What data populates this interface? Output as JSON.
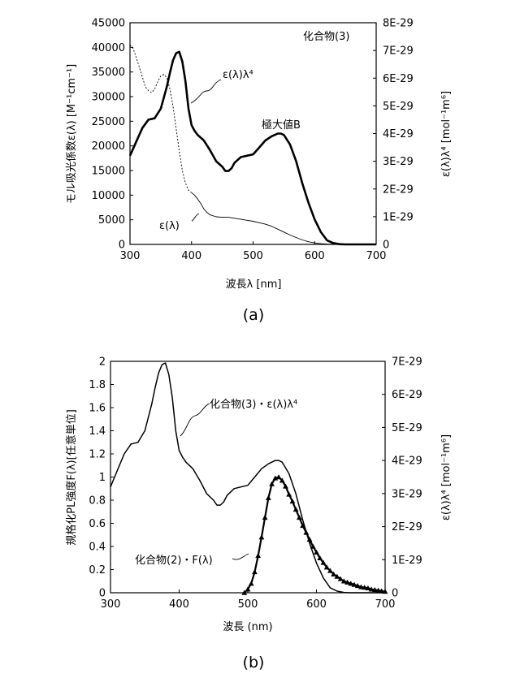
{
  "chart_data": [
    {
      "type": "line",
      "panel_label": "(a)",
      "compound_label": "化合物(3)",
      "xlabel": "波長λ [nm]",
      "ylabel_left": "モル吸光係数ε(λ) [M⁻¹cm⁻¹]",
      "ylabel_right": "ε(λ)λ⁴ [mol⁻¹m⁶]",
      "xlim": [
        300,
        700
      ],
      "ylim_left": [
        0,
        45000
      ],
      "ylim_right": [
        0,
        8e-29
      ],
      "xticks": [
        "300",
        "400",
        "500",
        "600",
        "700"
      ],
      "yticks_left": [
        "0",
        "5000",
        "10000",
        "15000",
        "20000",
        "25000",
        "30000",
        "35000",
        "40000",
        "45000"
      ],
      "yticks_right": [
        "0",
        "1E-29",
        "2E-29",
        "3E-29",
        "4E-29",
        "5E-29",
        "6E-29",
        "7E-29",
        "8E-29"
      ],
      "annotations": [
        "極大値B"
      ],
      "series": [
        {
          "name": "ε(λ)",
          "axis": "left",
          "style": "thin",
          "x": [
            300,
            305,
            310,
            315,
            320,
            325,
            330,
            335,
            340,
            345,
            350,
            355,
            360,
            365,
            370,
            375,
            380,
            385,
            390,
            395,
            400,
            405,
            410,
            415,
            420,
            425,
            430,
            440,
            450,
            460,
            470,
            480,
            490,
            500,
            510,
            520,
            530,
            540,
            550,
            560,
            570,
            580,
            590,
            600,
            610,
            620,
            640,
            660,
            680,
            700
          ],
          "values": [
            40500,
            39800,
            38000,
            36000,
            34000,
            32000,
            31200,
            30800,
            31500,
            33000,
            34200,
            34500,
            33800,
            31500,
            28000,
            23500,
            19000,
            15000,
            12500,
            11000,
            10500,
            10000,
            9200,
            8300,
            7200,
            6500,
            6000,
            5600,
            5500,
            5500,
            5300,
            5100,
            4900,
            4700,
            4400,
            4100,
            3700,
            3100,
            2500,
            1900,
            1400,
            900,
            550,
            300,
            150,
            60,
            10,
            0,
            0,
            0
          ]
        },
        {
          "name": "ε(λ)λ⁴",
          "axis": "right",
          "style": "thick",
          "x": [
            300,
            310,
            320,
            330,
            340,
            350,
            360,
            365,
            370,
            375,
            380,
            385,
            390,
            395,
            400,
            405,
            410,
            420,
            430,
            440,
            450,
            455,
            460,
            465,
            470,
            480,
            490,
            500,
            510,
            520,
            530,
            540,
            545,
            550,
            560,
            570,
            580,
            590,
            600,
            610,
            620,
            630,
            640,
            650,
            660,
            680,
            700
          ],
          "values": [
            3.2e-29,
            3.7e-29,
            4.2e-29,
            4.5e-29,
            4.55e-29,
            4.9e-29,
            5.7e-29,
            6.2e-29,
            6.65e-29,
            6.9e-29,
            6.95e-29,
            6.6e-29,
            5.9e-29,
            4.9e-29,
            4.3e-29,
            4.1e-29,
            3.95e-29,
            3.75e-29,
            3.4e-29,
            3e-29,
            2.8e-29,
            2.65e-29,
            2.65e-29,
            2.75e-29,
            2.95e-29,
            3.15e-29,
            3.2e-29,
            3.25e-29,
            3.5e-29,
            3.75e-29,
            3.9e-29,
            4e-29,
            4e-29,
            3.95e-29,
            3.6e-29,
            3e-29,
            2.2e-29,
            1.5e-29,
            9e-30,
            4.5e-30,
            1.5e-30,
            5e-31,
            1e-31,
            0,
            0,
            0,
            0
          ]
        }
      ]
    },
    {
      "type": "line",
      "panel_label": "(b)",
      "xlabel": "波長 (nm)",
      "ylabel_left": "規格化PL強度F(λ)[任意単位]",
      "ylabel_right": "ε(λ)λ⁴ [mol⁻¹m⁶]",
      "xlim": [
        300,
        700
      ],
      "ylim_left": [
        0,
        2
      ],
      "ylim_right": [
        0,
        7e-29
      ],
      "xticks": [
        "300",
        "400",
        "500",
        "600",
        "700"
      ],
      "yticks_left": [
        "0",
        "0.2",
        "0.4",
        "0.6",
        "0.8",
        "1",
        "1.2",
        "1.4",
        "1.6",
        "1.8",
        "2"
      ],
      "yticks_right": [
        "0",
        "1E-29",
        "2E-29",
        "3E-29",
        "4E-29",
        "5E-29",
        "6E-29",
        "7E-29"
      ],
      "series": [
        {
          "name": "化合物(3)・ε(λ)λ⁴",
          "axis": "right",
          "style": "line",
          "x": [
            300,
            310,
            320,
            330,
            340,
            350,
            360,
            365,
            370,
            375,
            380,
            385,
            390,
            395,
            400,
            405,
            410,
            420,
            430,
            440,
            450,
            455,
            460,
            465,
            470,
            480,
            490,
            500,
            510,
            520,
            530,
            540,
            545,
            550,
            560,
            570,
            580,
            590,
            600,
            610,
            620,
            630,
            640,
            650,
            660,
            680,
            700
          ],
          "values": [
            3.2e-29,
            3.7e-29,
            4.2e-29,
            4.5e-29,
            4.55e-29,
            4.9e-29,
            5.7e-29,
            6.2e-29,
            6.65e-29,
            6.9e-29,
            6.95e-29,
            6.6e-29,
            5.9e-29,
            4.9e-29,
            4.3e-29,
            4.1e-29,
            3.95e-29,
            3.75e-29,
            3.4e-29,
            3e-29,
            2.8e-29,
            2.65e-29,
            2.65e-29,
            2.75e-29,
            2.95e-29,
            3.15e-29,
            3.2e-29,
            3.25e-29,
            3.5e-29,
            3.75e-29,
            3.9e-29,
            4e-29,
            4e-29,
            3.95e-29,
            3.6e-29,
            3e-29,
            2.2e-29,
            1.5e-29,
            9e-30,
            4.5e-30,
            1.5e-30,
            5e-31,
            1e-31,
            0,
            0,
            0,
            0
          ]
        },
        {
          "name": "化合物(2)・F(λ)",
          "axis": "left",
          "style": "triangle-markers",
          "x": [
            495,
            500,
            505,
            510,
            515,
            520,
            525,
            530,
            535,
            540,
            545,
            550,
            555,
            560,
            565,
            570,
            575,
            580,
            585,
            590,
            595,
            600,
            605,
            610,
            615,
            620,
            625,
            630,
            635,
            640,
            645,
            650,
            655,
            660,
            665,
            670,
            675,
            680,
            685,
            690,
            695,
            700
          ],
          "values": [
            0.0,
            0.03,
            0.08,
            0.18,
            0.32,
            0.48,
            0.65,
            0.82,
            0.94,
            0.99,
            1.0,
            0.97,
            0.92,
            0.85,
            0.79,
            0.72,
            0.65,
            0.58,
            0.52,
            0.46,
            0.4,
            0.35,
            0.3,
            0.26,
            0.22,
            0.19,
            0.16,
            0.14,
            0.12,
            0.1,
            0.09,
            0.08,
            0.07,
            0.06,
            0.05,
            0.045,
            0.04,
            0.03,
            0.025,
            0.02,
            0.015,
            0.01
          ]
        }
      ]
    }
  ]
}
